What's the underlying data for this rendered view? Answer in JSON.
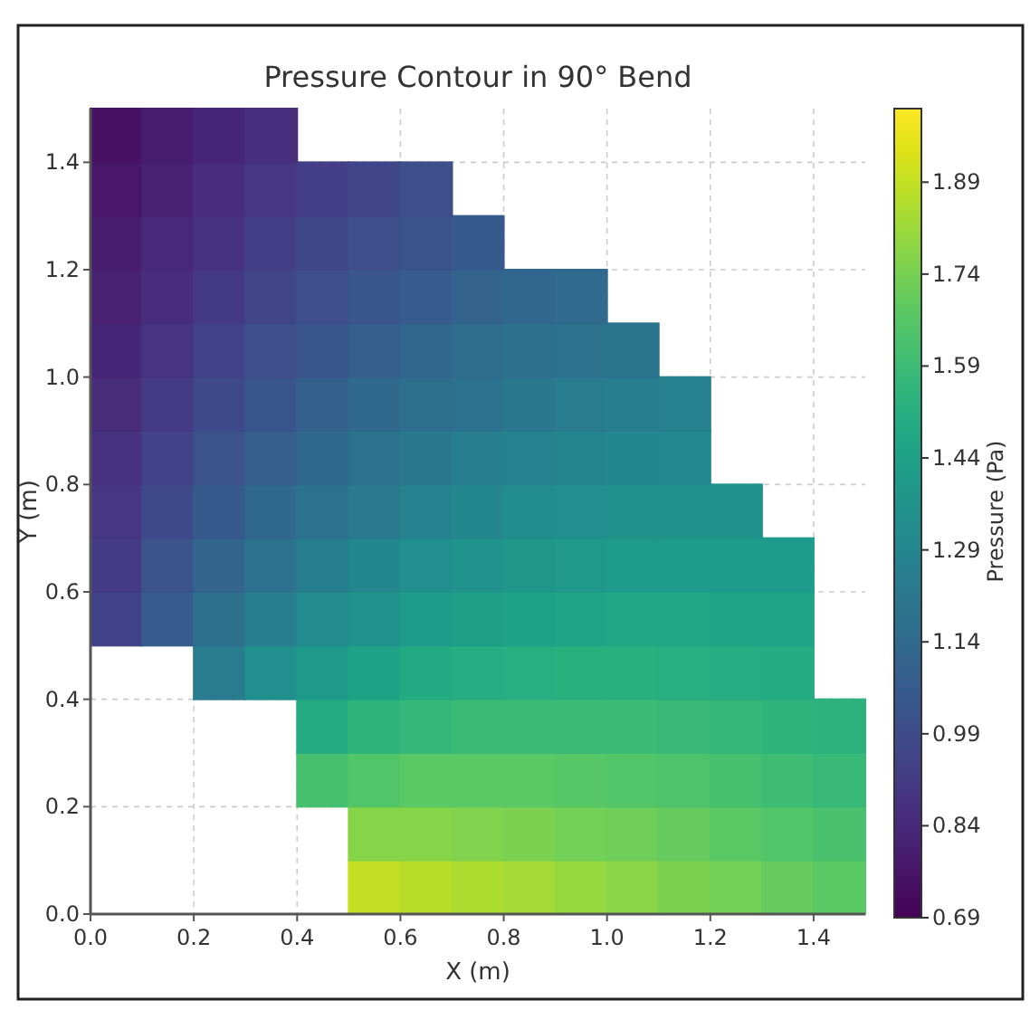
{
  "chart_data": {
    "type": "scatter",
    "title": "Pressure Contour in 90° Bend",
    "xlabel": "X (m)",
    "ylabel": "Y (m)",
    "clabel": "Pressure (Pa)",
    "xlim": [
      0,
      1.5
    ],
    "ylim": [
      0,
      1.5
    ],
    "xticks": [
      {
        "value": 0,
        "label": "0.0"
      },
      0.2,
      0.4,
      0.6,
      0.8,
      {
        "value": 1,
        "label": "1.0"
      },
      1.2,
      1.4
    ],
    "yticks": [
      {
        "value": 0,
        "label": "0.0"
      },
      0.2,
      0.4,
      0.6,
      0.8,
      {
        "value": 1,
        "label": "1.0"
      },
      1.2,
      1.4
    ],
    "clim": [
      0.69,
      2.01
    ],
    "cticks": [
      0.69,
      0.84,
      0.99,
      1.14,
      1.29,
      1.44,
      1.59,
      1.74,
      1.89
    ],
    "grid": true,
    "marker": "square",
    "x": [
      0.55,
      0.65,
      0.75,
      0.85,
      0.95,
      1.05,
      1.15,
      1.25,
      1.35,
      1.45,
      0.55,
      0.65,
      0.75,
      0.85,
      0.95,
      1.05,
      1.15,
      1.25,
      1.35,
      1.45,
      0.45,
      0.55,
      0.65,
      0.75,
      0.85,
      0.95,
      1.05,
      1.15,
      1.25,
      1.35,
      1.45,
      0.45,
      0.55,
      0.65,
      0.75,
      0.85,
      0.95,
      1.05,
      1.15,
      1.25,
      1.35,
      1.45,
      0.25,
      0.35,
      0.45,
      0.55,
      0.65,
      0.75,
      0.85,
      0.95,
      1.05,
      1.15,
      1.25,
      1.35,
      0.05,
      0.15,
      0.25,
      0.35,
      0.45,
      0.55,
      0.65,
      0.75,
      0.85,
      0.95,
      1.05,
      1.15,
      1.25,
      1.35,
      0.05,
      0.15,
      0.25,
      0.35,
      0.45,
      0.55,
      0.65,
      0.75,
      0.85,
      0.95,
      1.05,
      1.15,
      1.25,
      1.35,
      0.05,
      0.15,
      0.25,
      0.35,
      0.45,
      0.55,
      0.65,
      0.75,
      0.85,
      0.95,
      1.05,
      1.15,
      1.25,
      0.05,
      0.15,
      0.25,
      0.35,
      0.45,
      0.55,
      0.65,
      0.75,
      0.85,
      0.95,
      1.05,
      1.15,
      0.05,
      0.15,
      0.25,
      0.35,
      0.45,
      0.55,
      0.65,
      0.75,
      0.85,
      0.95,
      1.05,
      1.15,
      0.05,
      0.15,
      0.25,
      0.35,
      0.45,
      0.55,
      0.65,
      0.75,
      0.85,
      0.95,
      1.05,
      0.05,
      0.15,
      0.25,
      0.35,
      0.45,
      0.55,
      0.65,
      0.75,
      0.85,
      0.95,
      0.05,
      0.15,
      0.25,
      0.35,
      0.45,
      0.55,
      0.65,
      0.75,
      0.05,
      0.15,
      0.25,
      0.35,
      0.45,
      0.55,
      0.65,
      0.05,
      0.15,
      0.25,
      0.35
    ],
    "values": [
      0.05,
      0.05,
      0.05,
      0.05,
      0.05,
      0.05,
      0.05,
      0.05,
      0.05,
      0.05,
      0.15,
      0.15,
      0.15,
      0.15,
      0.15,
      0.15,
      0.15,
      0.15,
      0.15,
      0.15,
      0.25,
      0.25,
      0.25,
      0.25,
      0.25,
      0.25,
      0.25,
      0.25,
      0.25,
      0.25,
      0.25,
      0.35,
      0.35,
      0.35,
      0.35,
      0.35,
      0.35,
      0.35,
      0.35,
      0.35,
      0.35,
      0.35,
      0.45,
      0.45,
      0.45,
      0.45,
      0.45,
      0.45,
      0.45,
      0.45,
      0.45,
      0.45,
      0.45,
      0.45,
      0.55,
      0.55,
      0.55,
      0.55,
      0.55,
      0.55,
      0.55,
      0.55,
      0.55,
      0.55,
      0.55,
      0.55,
      0.55,
      0.55,
      0.65,
      0.65,
      0.65,
      0.65,
      0.65,
      0.65,
      0.65,
      0.65,
      0.65,
      0.65,
      0.65,
      0.65,
      0.65,
      0.65,
      0.75,
      0.75,
      0.75,
      0.75,
      0.75,
      0.75,
      0.75,
      0.75,
      0.75,
      0.75,
      0.75,
      0.75,
      0.75,
      0.85,
      0.85,
      0.85,
      0.85,
      0.85,
      0.85,
      0.85,
      0.85,
      0.85,
      0.85,
      0.85,
      0.85,
      0.95,
      0.95,
      0.95,
      0.95,
      0.95,
      0.95,
      0.95,
      0.95,
      0.95,
      0.95,
      0.95,
      0.95,
      1.05,
      1.05,
      1.05,
      1.05,
      1.05,
      1.05,
      1.05,
      1.05,
      1.05,
      1.05,
      1.05,
      1.15,
      1.15,
      1.15,
      1.15,
      1.15,
      1.15,
      1.15,
      1.15,
      1.15,
      1.15,
      1.25,
      1.25,
      1.25,
      1.25,
      1.25,
      1.25,
      1.25,
      1.25,
      1.35,
      1.35,
      1.35,
      1.35,
      1.35,
      1.35,
      1.35,
      1.45,
      1.45,
      1.45,
      1.45
    ],
    "cvalues": [
      1.89,
      1.87,
      1.85,
      1.83,
      1.8,
      1.78,
      1.75,
      1.73,
      1.7,
      1.67,
      1.77,
      1.77,
      1.76,
      1.75,
      1.73,
      1.72,
      1.7,
      1.67,
      1.65,
      1.63,
      1.62,
      1.65,
      1.67,
      1.67,
      1.67,
      1.66,
      1.65,
      1.64,
      1.62,
      1.6,
      1.58,
      1.5,
      1.55,
      1.57,
      1.59,
      1.59,
      1.59,
      1.59,
      1.58,
      1.57,
      1.55,
      1.54,
      1.24,
      1.34,
      1.4,
      1.45,
      1.49,
      1.51,
      1.52,
      1.53,
      1.53,
      1.52,
      1.51,
      1.5,
      0.95,
      1.07,
      1.17,
      1.25,
      1.32,
      1.37,
      1.41,
      1.43,
      1.45,
      1.46,
      1.47,
      1.47,
      1.46,
      1.46,
      0.92,
      1.02,
      1.11,
      1.19,
      1.25,
      1.3,
      1.34,
      1.37,
      1.39,
      1.4,
      1.41,
      1.41,
      1.41,
      1.41,
      0.9,
      0.98,
      1.06,
      1.13,
      1.19,
      1.23,
      1.27,
      1.3,
      1.33,
      1.34,
      1.35,
      1.36,
      1.36,
      0.88,
      0.95,
      1.02,
      1.08,
      1.13,
      1.18,
      1.22,
      1.25,
      1.27,
      1.29,
      1.3,
      1.31,
      0.85,
      0.92,
      0.98,
      1.04,
      1.09,
      1.13,
      1.16,
      1.19,
      1.22,
      1.24,
      1.25,
      1.26,
      0.83,
      0.89,
      0.95,
      1.0,
      1.04,
      1.08,
      1.12,
      1.15,
      1.17,
      1.19,
      1.2,
      0.81,
      0.86,
      0.91,
      0.96,
      1.0,
      1.04,
      1.07,
      1.1,
      1.12,
      1.14,
      0.79,
      0.84,
      0.88,
      0.93,
      0.97,
      1.0,
      1.03,
      1.06,
      0.77,
      0.81,
      0.86,
      0.9,
      0.93,
      0.96,
      1.0,
      0.75,
      0.79,
      0.83,
      0.87
    ]
  }
}
